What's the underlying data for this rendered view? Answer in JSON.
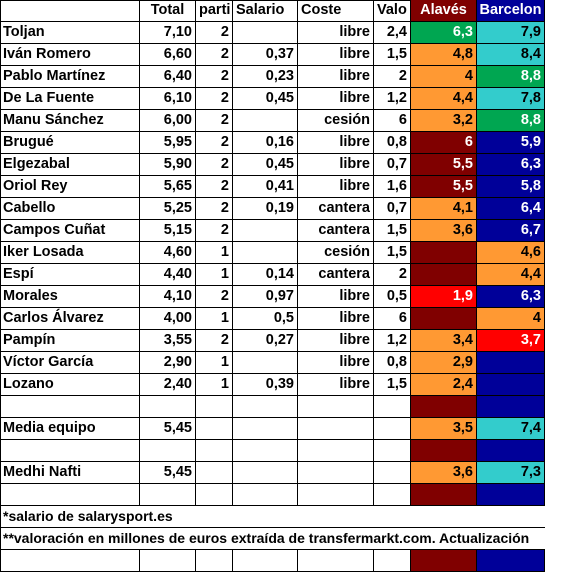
{
  "headers": [
    "",
    "Total",
    "parti",
    "Salario",
    "Coste",
    "Valo",
    "Alavés",
    "Barcelon"
  ],
  "colors": {
    "green": "#00a651",
    "cyan": "#33cccc",
    "orange": "#ff9933",
    "darkred": "#800000",
    "red": "#ff0000",
    "navy": "#000099"
  },
  "rows": [
    {
      "name": "Toljan",
      "total": "7,10",
      "parti": "2",
      "salario": "",
      "coste": "libre",
      "valor": "2,4",
      "alaves": "6,3",
      "alaves_color": "green",
      "barca": "7,9",
      "barca_color": "cyan"
    },
    {
      "name": "Iván Romero",
      "total": "6,60",
      "parti": "2",
      "salario": "0,37",
      "coste": "libre",
      "valor": "1,5",
      "alaves": "4,8",
      "alaves_color": "orange",
      "barca": "8,4",
      "barca_color": "cyan"
    },
    {
      "name": "Pablo Martínez",
      "total": "6,40",
      "parti": "2",
      "salario": "0,23",
      "coste": "libre",
      "valor": "2",
      "alaves": "4",
      "alaves_color": "orange",
      "barca": "8,8",
      "barca_color": "green"
    },
    {
      "name": "De La Fuente",
      "total": "6,10",
      "parti": "2",
      "salario": "0,45",
      "coste": "libre",
      "valor": "1,2",
      "alaves": "4,4",
      "alaves_color": "orange",
      "barca": "7,8",
      "barca_color": "cyan"
    },
    {
      "name": "Manu Sánchez",
      "total": "6,00",
      "parti": "2",
      "salario": "",
      "coste": "cesión",
      "valor": "6",
      "alaves": "3,2",
      "alaves_color": "orange",
      "barca": "8,8",
      "barca_color": "green"
    },
    {
      "name": "Brugué",
      "total": "5,95",
      "parti": "2",
      "salario": "0,16",
      "coste": "libre",
      "valor": "0,8",
      "alaves": "6",
      "alaves_color": "darkred",
      "barca": "5,9",
      "barca_color": "navy"
    },
    {
      "name": "Elgezabal",
      "total": "5,90",
      "parti": "2",
      "salario": "0,45",
      "coste": "libre",
      "valor": "0,7",
      "alaves": "5,5",
      "alaves_color": "darkred",
      "barca": "6,3",
      "barca_color": "navy"
    },
    {
      "name": "Oriol Rey",
      "total": "5,65",
      "parti": "2",
      "salario": "0,41",
      "coste": "libre",
      "valor": "1,6",
      "alaves": "5,5",
      "alaves_color": "darkred",
      "barca": "5,8",
      "barca_color": "navy"
    },
    {
      "name": "Cabello",
      "total": "5,25",
      "parti": "2",
      "salario": "0,19",
      "coste": "cantera",
      "valor": "0,7",
      "alaves": "4,1",
      "alaves_color": "orange",
      "barca": "6,4",
      "barca_color": "navy"
    },
    {
      "name": "Campos Cuñat",
      "total": "5,15",
      "parti": "2",
      "salario": "",
      "coste": "cantera",
      "valor": "1,5",
      "alaves": "3,6",
      "alaves_color": "orange",
      "barca": "6,7",
      "barca_color": "navy"
    },
    {
      "name": "Iker Losada",
      "total": "4,60",
      "parti": "1",
      "salario": "",
      "coste": "cesión",
      "valor": "1,5",
      "alaves": "",
      "alaves_color": "darkred",
      "barca": "4,6",
      "barca_color": "orange"
    },
    {
      "name": "Espí",
      "total": "4,40",
      "parti": "1",
      "salario": "0,14",
      "coste": "cantera",
      "valor": "2",
      "alaves": "",
      "alaves_color": "darkred",
      "barca": "4,4",
      "barca_color": "orange"
    },
    {
      "name": "Morales",
      "total": "4,10",
      "parti": "2",
      "salario": "0,97",
      "coste": "libre",
      "valor": "0,5",
      "alaves": "1,9",
      "alaves_color": "red",
      "barca": "6,3",
      "barca_color": "navy"
    },
    {
      "name": "Carlos Álvarez",
      "total": "4,00",
      "parti": "1",
      "salario": "0,5",
      "coste": "libre",
      "valor": "6",
      "alaves": "",
      "alaves_color": "darkred",
      "barca": "4",
      "barca_color": "orange"
    },
    {
      "name": "Pampín",
      "total": "3,55",
      "parti": "2",
      "salario": "0,27",
      "coste": "libre",
      "valor": "1,2",
      "alaves": "3,4",
      "alaves_color": "orange",
      "barca": "3,7",
      "barca_color": "red"
    },
    {
      "name": "Víctor García",
      "total": "2,90",
      "parti": "1",
      "salario": "",
      "coste": "libre",
      "valor": "0,8",
      "alaves": "2,9",
      "alaves_color": "orange",
      "barca": "",
      "barca_color": "navy"
    },
    {
      "name": "Lozano",
      "total": "2,40",
      "parti": "1",
      "salario": "0,39",
      "coste": "libre",
      "valor": "1,5",
      "alaves": "2,4",
      "alaves_color": "orange",
      "barca": "",
      "barca_color": "navy"
    },
    {
      "name": "",
      "total": "",
      "parti": "",
      "salario": "",
      "coste": "",
      "valor": "",
      "alaves": "",
      "alaves_color": "darkred",
      "barca": "",
      "barca_color": "navy"
    },
    {
      "name": "Media equipo",
      "total": "5,45",
      "parti": "",
      "salario": "",
      "coste": "",
      "valor": "",
      "alaves": "3,5",
      "alaves_color": "orange",
      "barca": "7,4",
      "barca_color": "cyan"
    },
    {
      "name": "",
      "total": "",
      "parti": "",
      "salario": "",
      "coste": "",
      "valor": "",
      "alaves": "",
      "alaves_color": "darkred",
      "barca": "",
      "barca_color": "navy"
    },
    {
      "name": "Medhi Nafti",
      "total": "5,45",
      "parti": "",
      "salario": "",
      "coste": "",
      "valor": "",
      "alaves": "3,6",
      "alaves_color": "orange",
      "barca": "7,3",
      "barca_color": "cyan"
    },
    {
      "name": "",
      "total": "",
      "parti": "",
      "salario": "",
      "coste": "",
      "valor": "",
      "alaves": "",
      "alaves_color": "darkred",
      "barca": "",
      "barca_color": "navy"
    }
  ],
  "notes": [
    "*salario de salarysport.es",
    "**valoración en millones de euros extraída de transfermarkt.com. Actualización"
  ],
  "trailing_row": {
    "alaves_color": "darkred",
    "barca_color": "navy"
  }
}
